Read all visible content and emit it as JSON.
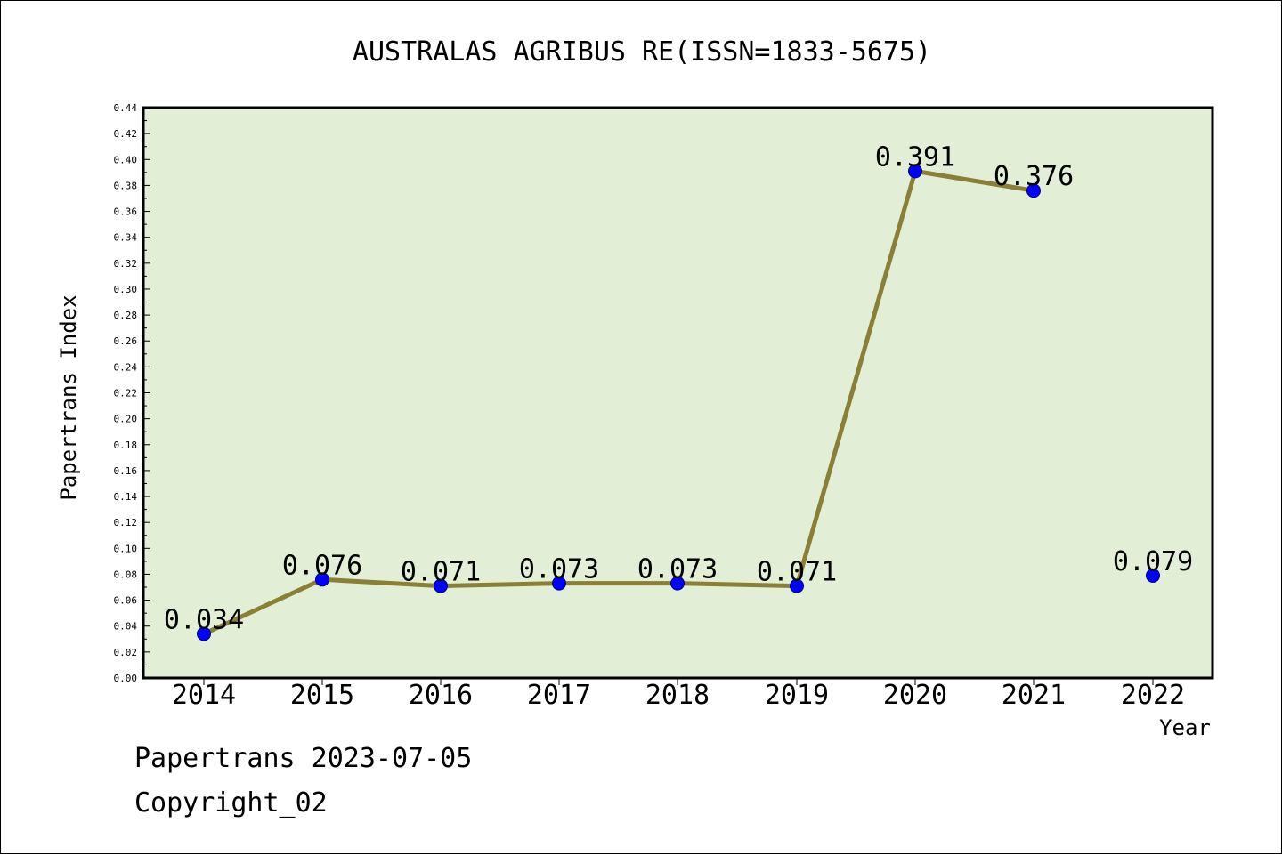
{
  "chart_data": {
    "type": "line",
    "title": "AUSTRALAS AGRIBUS RE(ISSN=1833-5675)",
    "xlabel": "Year",
    "ylabel": "Papertrans Index",
    "categories": [
      "2014",
      "2015",
      "2016",
      "2017",
      "2018",
      "2019",
      "2020",
      "2021",
      "2022"
    ],
    "series": [
      {
        "values": [
          0.034,
          0.076,
          0.071,
          0.073,
          0.073,
          0.071,
          0.391,
          0.376,
          0.079
        ],
        "labels": [
          "0.034",
          "0.076",
          "0.071",
          "0.073",
          "0.073",
          "0.071",
          "0.391",
          "0.376",
          "0.079"
        ],
        "segments_drawn": [
          [
            0,
            7
          ]
        ]
      }
    ],
    "ylim": [
      0,
      0.44
    ],
    "yticks": [
      "0.00",
      "0.02",
      "0.04",
      "0.06",
      "0.08",
      "0.10",
      "0.12",
      "0.14",
      "0.16",
      "0.18",
      "0.20",
      "0.22",
      "0.24",
      "0.26",
      "0.28",
      "0.30",
      "0.32",
      "0.34",
      "0.36",
      "0.38",
      "0.40",
      "0.42",
      "0.44"
    ],
    "grid": false,
    "legend": "none",
    "colors": {
      "plot_background": "#e2efd6",
      "line": "#8b7e35",
      "marker": "#0000ff",
      "marker_edge": "#000080"
    }
  },
  "footer": {
    "date_line": "Papertrans 2023-07-05",
    "copyright": "Copyright_02"
  }
}
